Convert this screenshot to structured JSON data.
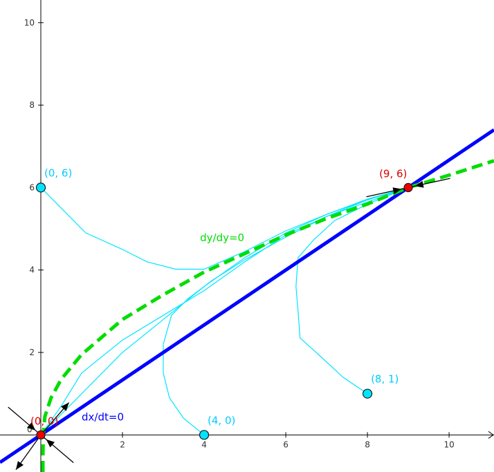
{
  "chart_data": {
    "type": "line",
    "title": "",
    "xlabel": "",
    "ylabel": "",
    "xlim": [
      -1,
      11.1
    ],
    "ylim": [
      -0.9,
      10.55
    ],
    "grid": false,
    "x_ticks": [
      2,
      4,
      6,
      8,
      10
    ],
    "x_tick_labels": [
      "2",
      "4",
      "6",
      "8",
      "10"
    ],
    "y_ticks": [
      2,
      4,
      6,
      8,
      10
    ],
    "y_tick_labels": [
      "2",
      "4",
      "6",
      "8",
      "10"
    ],
    "origin_label": "0",
    "nullclines": [
      {
        "name": "dx/dt=0",
        "color": "#0000ff",
        "style": "solid",
        "label_at": [
          1.0,
          0.35
        ],
        "points": [
          [
            -1.0,
            -0.667
          ],
          [
            11.1,
            7.4
          ]
        ]
      },
      {
        "name": "dy/dy=0",
        "color": "#00dd00",
        "style": "dashed",
        "label_at": [
          3.9,
          4.7
        ],
        "points": [
          [
            0.05,
            -0.9
          ],
          [
            0.05,
            -0.6
          ],
          [
            0.06,
            0.0
          ],
          [
            0.1,
            0.45
          ],
          [
            0.25,
            0.9
          ],
          [
            0.5,
            1.35
          ],
          [
            1.0,
            1.95
          ],
          [
            2.0,
            2.8
          ],
          [
            3.0,
            3.4
          ],
          [
            4.0,
            3.95
          ],
          [
            5.0,
            4.4
          ],
          [
            6.0,
            4.85
          ],
          [
            7.0,
            5.25
          ],
          [
            8.0,
            5.6
          ],
          [
            9.0,
            6.0
          ],
          [
            10.0,
            6.3
          ],
          [
            11.1,
            6.65
          ]
        ]
      }
    ],
    "trajectories": [
      {
        "start_label": "(0, 6)",
        "points": [
          [
            0.0,
            6.0
          ],
          [
            0.5,
            5.5
          ],
          [
            1.1,
            4.9
          ],
          [
            2.0,
            4.5
          ],
          [
            2.6,
            4.2
          ],
          [
            3.3,
            4.02
          ],
          [
            4.0,
            4.02
          ],
          [
            5.0,
            4.45
          ],
          [
            6.0,
            4.95
          ],
          [
            7.0,
            5.35
          ],
          [
            8.0,
            5.7
          ],
          [
            9.0,
            6.0
          ]
        ]
      },
      {
        "start_label": "(4, 0)",
        "points": [
          [
            4.0,
            0.0
          ],
          [
            3.5,
            0.4
          ],
          [
            3.15,
            0.9
          ],
          [
            3.0,
            1.5
          ],
          [
            3.0,
            2.2
          ],
          [
            3.2,
            2.9
          ],
          [
            3.6,
            3.3
          ],
          [
            4.2,
            3.75
          ],
          [
            5.0,
            4.25
          ],
          [
            6.0,
            4.8
          ],
          [
            7.0,
            5.3
          ],
          [
            8.0,
            5.7
          ],
          [
            9.0,
            6.0
          ]
        ]
      },
      {
        "start_label": "(8, 1)",
        "points": [
          [
            8.0,
            1.0
          ],
          [
            7.4,
            1.4
          ],
          [
            6.8,
            1.95
          ],
          [
            6.35,
            2.35
          ],
          [
            6.3,
            3.0
          ],
          [
            6.25,
            3.6
          ],
          [
            6.3,
            4.3
          ],
          [
            6.7,
            4.75
          ],
          [
            7.2,
            5.2
          ],
          [
            8.0,
            5.6
          ],
          [
            9.0,
            6.0
          ]
        ]
      },
      {
        "start_label": "",
        "points": [
          [
            0.0,
            0.0
          ],
          [
            0.5,
            0.7
          ],
          [
            1.0,
            1.5
          ],
          [
            2.0,
            2.3
          ],
          [
            3.0,
            2.9
          ],
          [
            4.0,
            3.5
          ],
          [
            5.0,
            4.2
          ],
          [
            6.0,
            4.85
          ],
          [
            7.0,
            5.3
          ],
          [
            8.0,
            5.65
          ],
          [
            9.0,
            6.0
          ]
        ]
      },
      {
        "start_label": "",
        "points": [
          [
            0.05,
            0.05
          ],
          [
            1.0,
            1.0
          ],
          [
            2.0,
            2.0
          ],
          [
            3.0,
            2.8
          ],
          [
            4.0,
            3.6
          ],
          [
            5.0,
            4.3
          ],
          [
            6.0,
            4.9
          ],
          [
            7.0,
            5.35
          ],
          [
            8.0,
            5.72
          ],
          [
            9.0,
            6.0
          ]
        ]
      }
    ],
    "initial_points": [
      {
        "label": "(0, 6)",
        "x": 0,
        "y": 6
      },
      {
        "label": "(4, 0)",
        "x": 4,
        "y": 0
      },
      {
        "label": "(8, 1)",
        "x": 8,
        "y": 1
      }
    ],
    "equilibria": [
      {
        "label": "(0, 0)",
        "x": 0,
        "y": 0
      },
      {
        "label": "(9, 6)",
        "x": 9,
        "y": 6
      }
    ],
    "eigen_arrows": [
      {
        "at": [
          0,
          0
        ],
        "direction": [
          1,
          1.15
        ],
        "sense": "out"
      },
      {
        "at": [
          0,
          0
        ],
        "direction": [
          -1,
          -1.4
        ],
        "sense": "out"
      },
      {
        "at": [
          0,
          0
        ],
        "direction": [
          1,
          -0.85
        ],
        "sense": "in"
      },
      {
        "at": [
          0,
          0
        ],
        "direction": [
          -1,
          0.85
        ],
        "sense": "in"
      },
      {
        "at": [
          9,
          6
        ],
        "direction": [
          1,
          0.22
        ],
        "sense": "in"
      },
      {
        "at": [
          9,
          6
        ],
        "direction": [
          -1,
          -0.22
        ],
        "sense": "in"
      }
    ],
    "colors": {
      "axis": "#000000",
      "trajectory": "#00e5ff",
      "initial_point_fill": "#00e5ff",
      "equilibrium_fill": "#ee0000",
      "initial_label": "#00ccff",
      "equilibrium_label": "#dd0000",
      "arrow": "#000000"
    }
  }
}
